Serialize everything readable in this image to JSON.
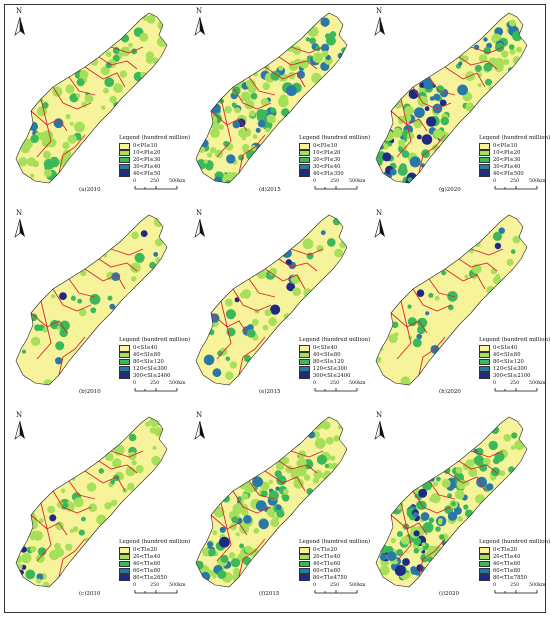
{
  "legend_title": "Legend (hundred million)",
  "colors": [
    "#f7f39a",
    "#a6e05a",
    "#3bb85a",
    "#2a78a8",
    "#1e2a86"
  ],
  "scale": {
    "ticks": [
      "0",
      "250",
      "500km"
    ]
  },
  "north_label": "N",
  "panels": [
    {
      "id": "a",
      "label": "(a)2010",
      "legend": [
        "0<PI≤10",
        "10<PI≤20",
        "20<PI≤30",
        "30<PI≤40",
        "40<PI≤50"
      ]
    },
    {
      "id": "d",
      "label": "(d)2015",
      "legend": [
        "0<PI≤10",
        "10<PI≤20",
        "20<PI≤30",
        "30<PI≤40",
        "40<PI≤350"
      ]
    },
    {
      "id": "g",
      "label": "(g)2020",
      "legend": [
        "0<PI≤10",
        "10<PI≤20",
        "20<PI≤30",
        "30<PI≤40",
        "40<PI≤500"
      ]
    },
    {
      "id": "b",
      "label": "(b)2010",
      "legend": [
        "0<SI≤40",
        "40<SI≤80",
        "80<SI≤120",
        "120<SI≤300",
        "300<SI≤2400"
      ]
    },
    {
      "id": "e",
      "label": "(e)2015",
      "legend": [
        "0<SI≤40",
        "40<SI≤80",
        "80<SI≤120",
        "120<SI≤300",
        "300<SI≤2400"
      ]
    },
    {
      "id": "h",
      "label": "(h)2020",
      "legend": [
        "0<SI≤40",
        "40<SI≤80",
        "80<SI≤120",
        "120<SI≤300",
        "300<SI≤2100"
      ]
    },
    {
      "id": "c",
      "label": "(c)2010",
      "legend": [
        "0<TI≤20",
        "20<TI≤40",
        "40<TI≤60",
        "60<TI≤80",
        "80<TI≤2650"
      ]
    },
    {
      "id": "f",
      "label": "(f)2015",
      "legend": [
        "0<TI≤20",
        "20<TI≤40",
        "40<TI≤60",
        "60<TI≤80",
        "80<TI≤4750"
      ]
    },
    {
      "id": "i",
      "label": "(i)2020",
      "legend": [
        "0<TI≤20",
        "20<TI≤40",
        "40<TI≤60",
        "60<TI≤80",
        "80<TI≤7850"
      ]
    }
  ]
}
